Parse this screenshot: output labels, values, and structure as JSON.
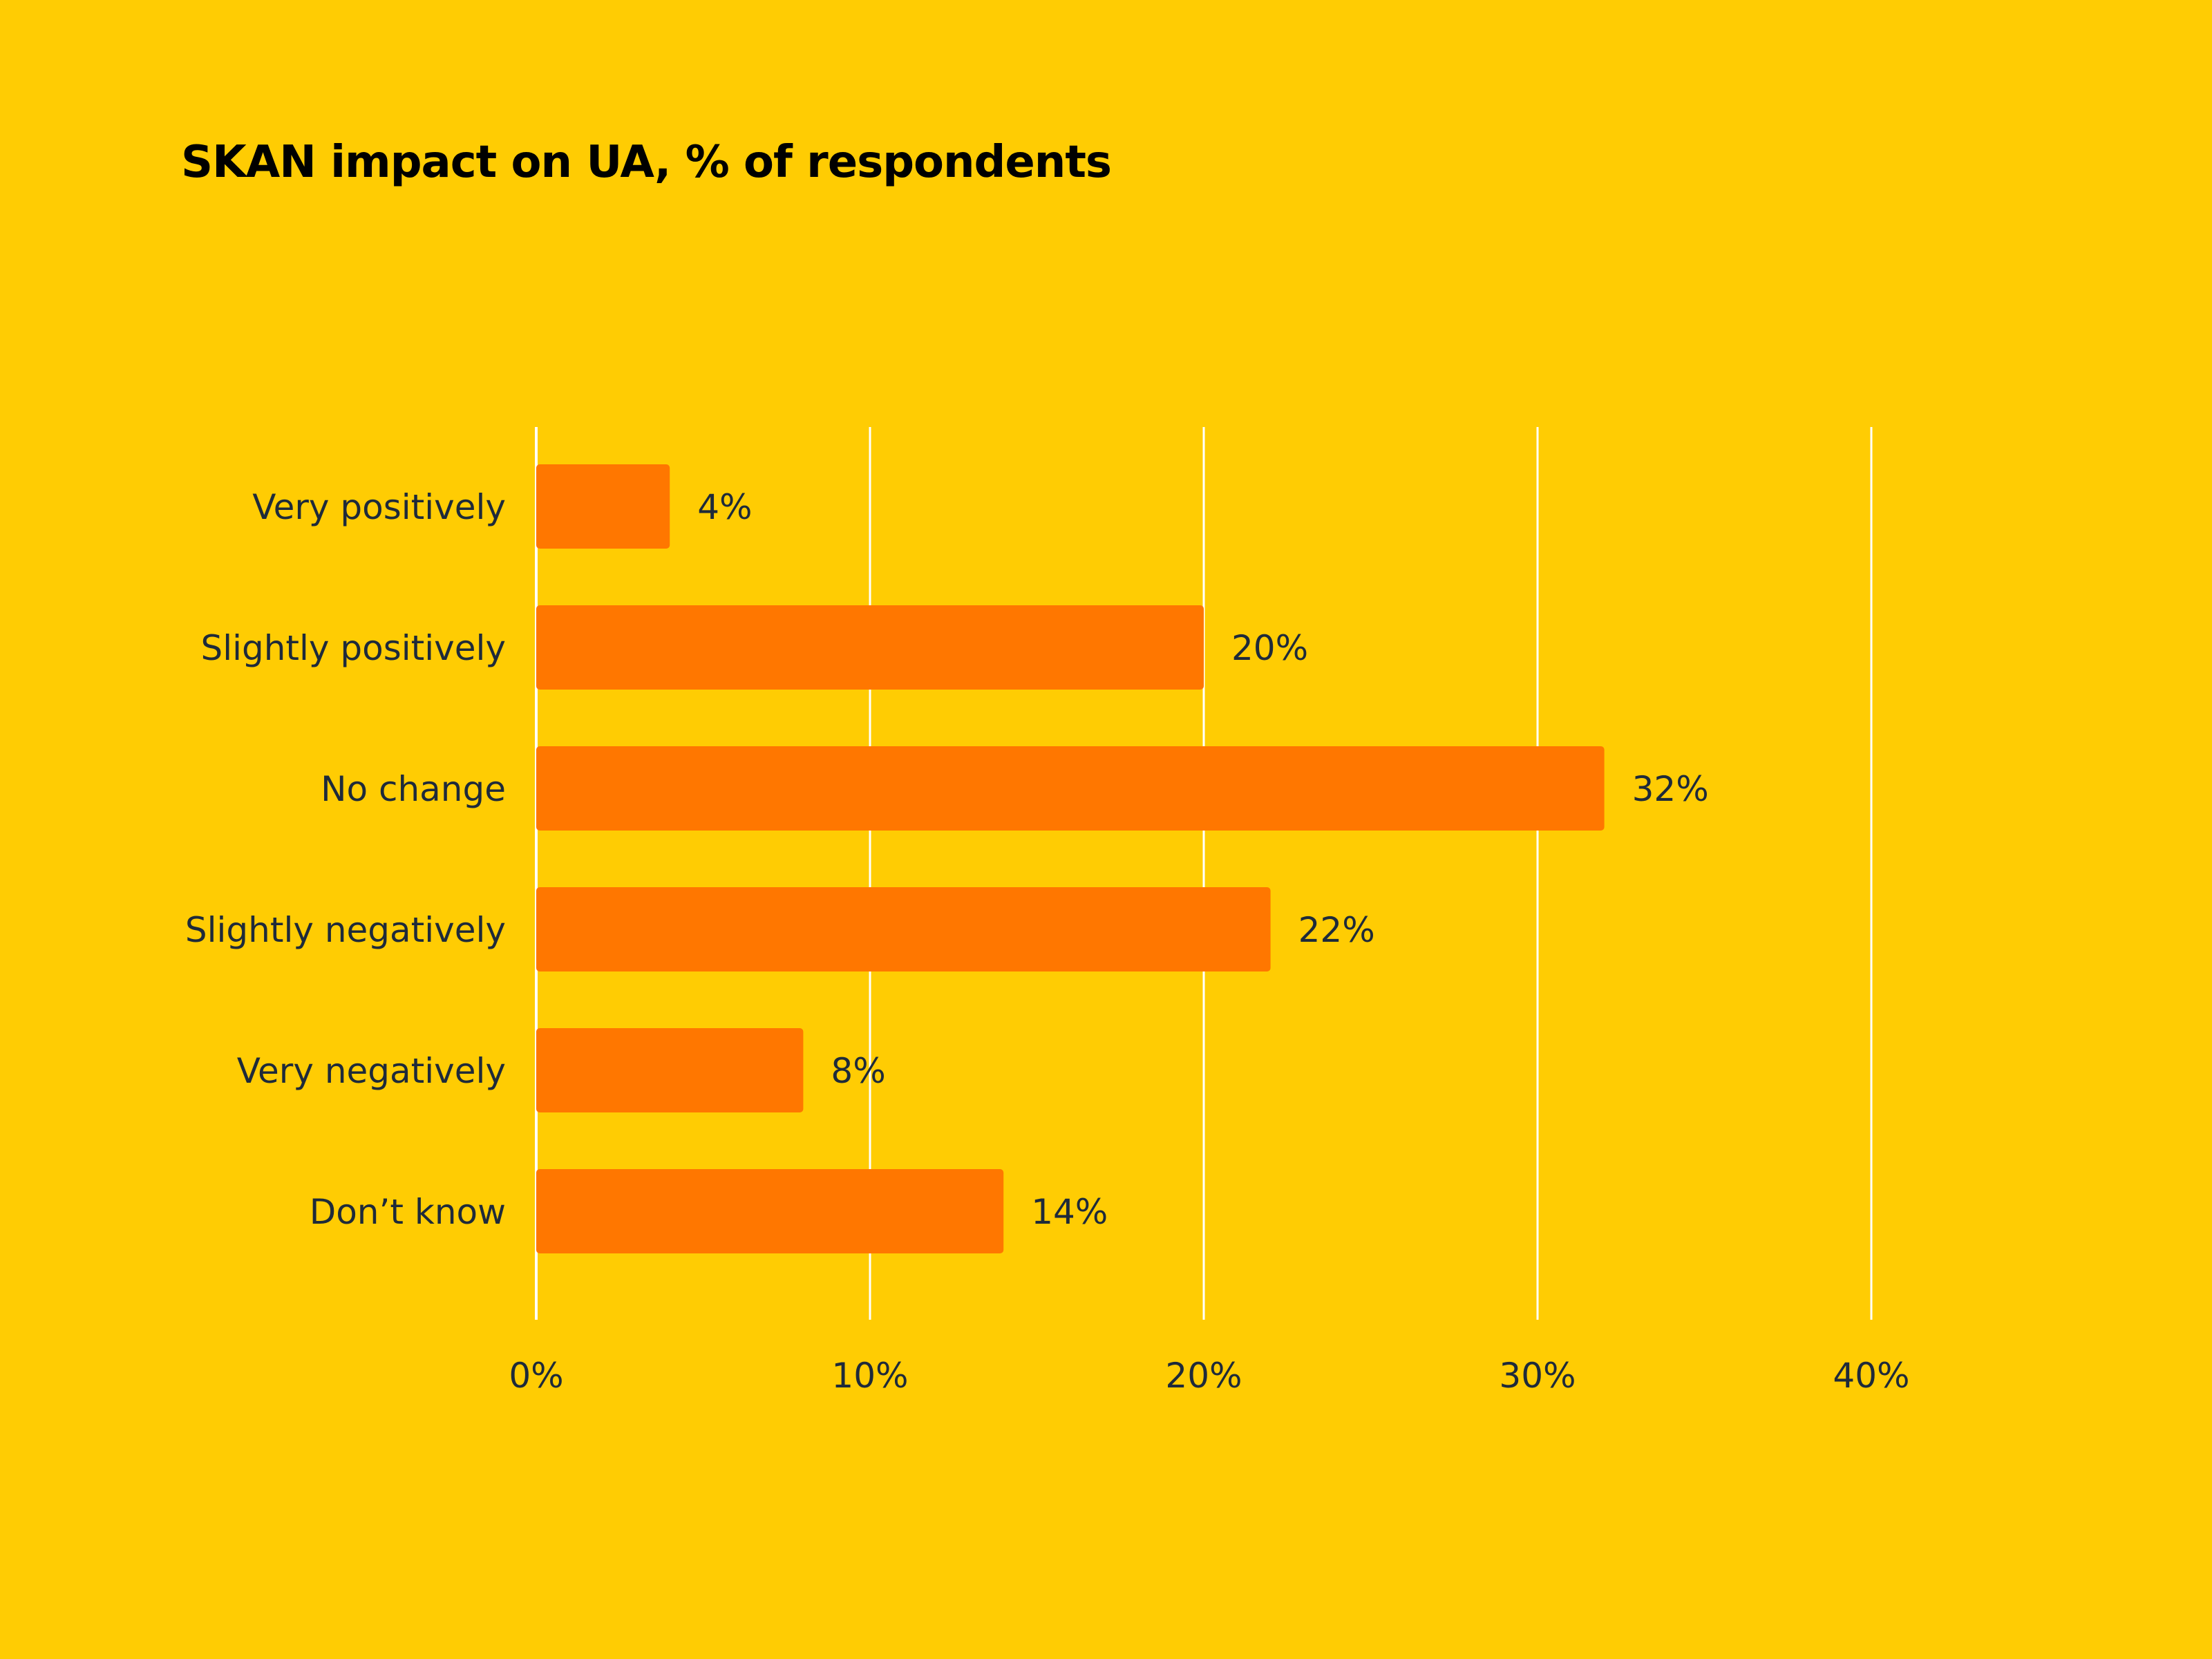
{
  "chart_data": {
    "type": "bar",
    "orientation": "horizontal",
    "title": "SKAN impact on UA, % of respondents",
    "categories": [
      "Very positively",
      "Slightly positively",
      "No change",
      "Slightly negatively",
      "Very negatively",
      "Don’t know"
    ],
    "values": [
      4,
      20,
      32,
      22,
      8,
      14
    ],
    "value_labels": [
      "4%",
      "20%",
      "32%",
      "22%",
      "8%",
      "14%"
    ],
    "xlim": [
      0,
      40
    ],
    "x_ticks": [
      0,
      10,
      20,
      30,
      40
    ],
    "x_tick_labels": [
      "0%",
      "10%",
      "20%",
      "30%",
      "40%"
    ],
    "xlabel": "",
    "ylabel": "",
    "grid": true,
    "legend": "none"
  },
  "colors": {
    "background": "#FFCC03",
    "bar": "#FF7700",
    "gridline": "#FFFFFF",
    "text": "#1E2A3A",
    "title": "#000000"
  }
}
